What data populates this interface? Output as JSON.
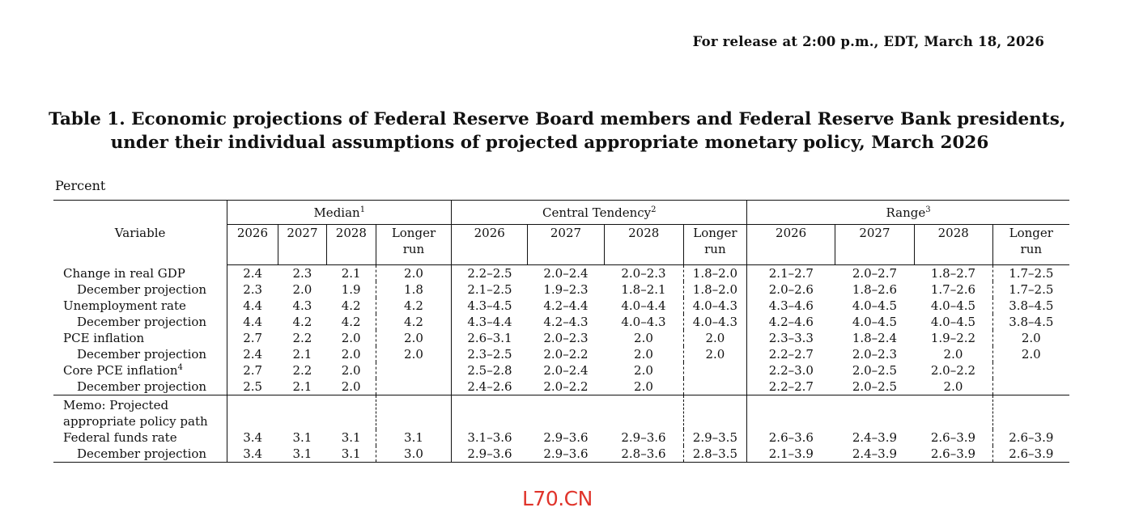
{
  "release_note": "For release at 2:00 p.m., EDT, March 18, 2026",
  "title": {
    "line1": "Table 1. Economic projections of Federal Reserve Board members and Federal Reserve Bank presidents,",
    "line2": "under their individual assumptions of projected appropriate monetary policy, March 2026"
  },
  "unit_label": "Percent",
  "table": {
    "variable_header": "Variable",
    "groups": [
      {
        "label": "Median",
        "note": "1"
      },
      {
        "label": "Central Tendency",
        "note": "2"
      },
      {
        "label": "Range",
        "note": "3"
      }
    ],
    "years": [
      "2026",
      "2027",
      "2028"
    ],
    "longer_run": {
      "line1": "Longer",
      "line2": "run"
    },
    "rows": [
      {
        "label": "Change in real GDP",
        "note": "",
        "values": [
          "2.4",
          "2.3",
          "2.1",
          "2.0",
          "2.2–2.5",
          "2.0–2.4",
          "2.0–2.3",
          "1.8–2.0",
          "2.1–2.7",
          "2.0–2.7",
          "1.8–2.7",
          "1.7–2.5"
        ]
      },
      {
        "label": "December projection",
        "note": "",
        "values": [
          "2.3",
          "2.0",
          "1.9",
          "1.8",
          "2.1–2.5",
          "1.9–2.3",
          "1.8–2.1",
          "1.8–2.0",
          "2.0–2.6",
          "1.8–2.6",
          "1.7–2.6",
          "1.7–2.5"
        ]
      },
      {
        "label": "Unemployment rate",
        "note": "",
        "values": [
          "4.4",
          "4.3",
          "4.2",
          "4.2",
          "4.3–4.5",
          "4.2–4.4",
          "4.0–4.4",
          "4.0–4.3",
          "4.3–4.6",
          "4.0–4.5",
          "4.0–4.5",
          "3.8–4.5"
        ]
      },
      {
        "label": "December projection",
        "note": "",
        "values": [
          "4.4",
          "4.2",
          "4.2",
          "4.2",
          "4.3–4.4",
          "4.2–4.3",
          "4.0–4.3",
          "4.0–4.3",
          "4.2–4.6",
          "4.0–4.5",
          "4.0–4.5",
          "3.8–4.5"
        ]
      },
      {
        "label": "PCE inflation",
        "note": "",
        "values": [
          "2.7",
          "2.2",
          "2.0",
          "2.0",
          "2.6–3.1",
          "2.0–2.3",
          "2.0",
          "2.0",
          "2.3–3.3",
          "1.8–2.4",
          "1.9–2.2",
          "2.0"
        ]
      },
      {
        "label": "December projection",
        "note": "",
        "values": [
          "2.4",
          "2.1",
          "2.0",
          "2.0",
          "2.3–2.5",
          "2.0–2.2",
          "2.0",
          "2.0",
          "2.2–2.7",
          "2.0–2.3",
          "2.0",
          "2.0"
        ]
      },
      {
        "label": "Core PCE inflation",
        "note": "4",
        "values": [
          "2.7",
          "2.2",
          "2.0",
          "",
          "2.5–2.8",
          "2.0–2.4",
          "2.0",
          "",
          "2.2–3.0",
          "2.0–2.5",
          "2.0–2.2",
          ""
        ]
      },
      {
        "label": "December projection",
        "note": "",
        "values": [
          "2.5",
          "2.1",
          "2.0",
          "",
          "2.4–2.6",
          "2.0–2.2",
          "2.0",
          "",
          "2.2–2.7",
          "2.0–2.5",
          "2.0",
          ""
        ]
      }
    ],
    "memo": {
      "line1": "Memo: Projected",
      "line2": "appropriate policy path"
    },
    "memo_rows": [
      {
        "label": "Federal funds rate",
        "values": [
          "3.4",
          "3.1",
          "3.1",
          "3.1",
          "3.1–3.6",
          "2.9–3.6",
          "2.9–3.6",
          "2.9–3.5",
          "2.6–3.6",
          "2.4–3.9",
          "2.6–3.9",
          "2.6–3.9"
        ]
      },
      {
        "label": "December projection",
        "values": [
          "3.4",
          "3.1",
          "3.1",
          "3.0",
          "2.9–3.6",
          "2.9–3.6",
          "2.8–3.6",
          "2.8–3.5",
          "2.1–3.9",
          "2.4–3.9",
          "2.6–3.9",
          "2.6–3.9"
        ]
      }
    ]
  },
  "watermark": "L70.CN"
}
